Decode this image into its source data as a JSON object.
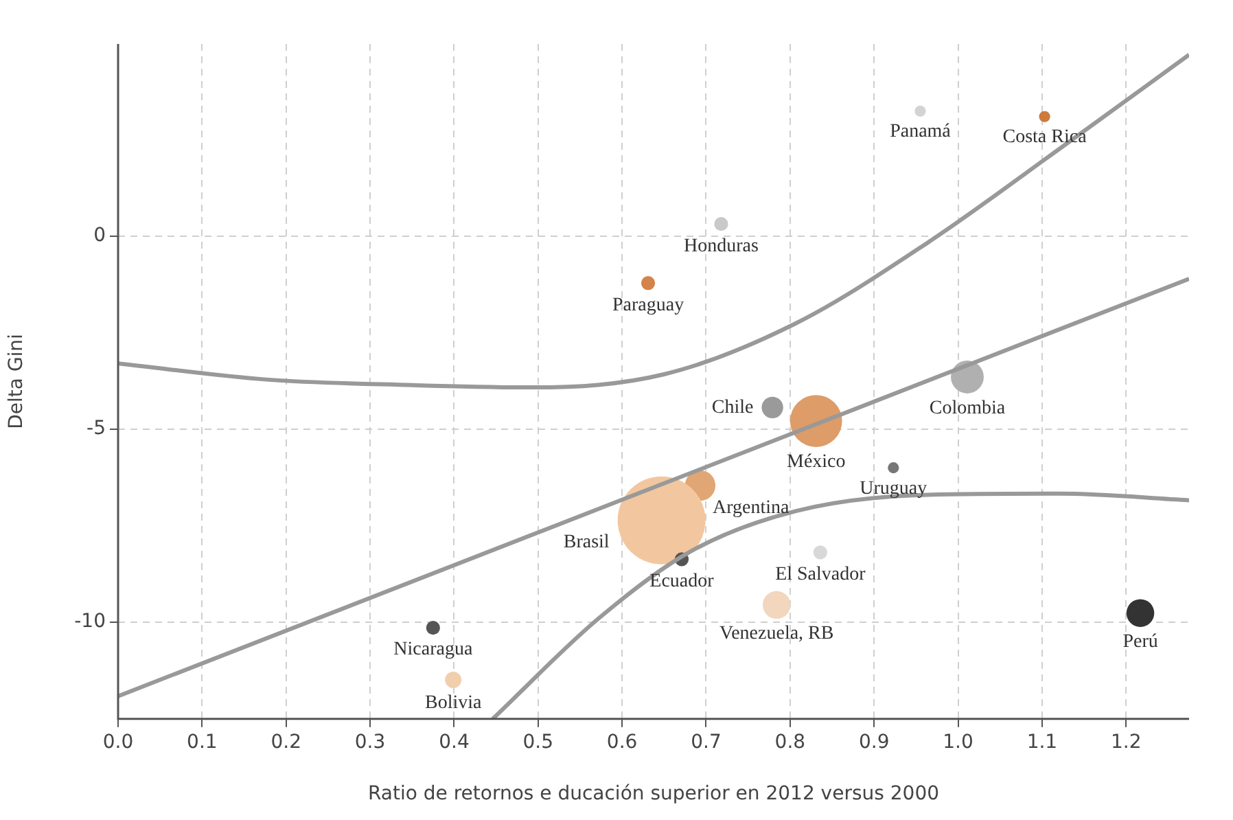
{
  "chart_data": {
    "type": "bubble",
    "xlabel": "Ratio de retornos e ducación superior en 2012 versus 2000",
    "ylabel": "Delta Gini",
    "xlim": [
      0,
      1.275
    ],
    "ylim": [
      -12.5,
      4.97
    ],
    "xticks": [
      {
        "value": 0,
        "label": "0.0"
      },
      {
        "value": 0.1,
        "label": "0.1"
      },
      {
        "value": 0.2,
        "label": "0.2"
      },
      {
        "value": 0.3,
        "label": "0.3"
      },
      {
        "value": 0.4,
        "label": "0.4"
      },
      {
        "value": 0.5,
        "label": "0.5"
      },
      {
        "value": 0.6,
        "label": "0.6"
      },
      {
        "value": 0.7,
        "label": "0.7"
      },
      {
        "value": 0.8,
        "label": "0.8"
      },
      {
        "value": 0.9,
        "label": "0.9"
      },
      {
        "value": 1,
        "label": "1.0"
      },
      {
        "value": 1.1,
        "label": "1.1"
      },
      {
        "value": 1.2,
        "label": "1.2"
      }
    ],
    "yticks": [
      -10,
      -5,
      0
    ],
    "grid": true,
    "legend": false,
    "series": [
      {
        "name": "Panamá",
        "color": "#d3d3d3",
        "x": [
          0.955
        ],
        "values": [
          3.23
        ],
        "sizes": [
          0.016
        ]
      },
      {
        "name": "Costa Rica",
        "color": "#cd7a3d",
        "x": [
          1.103
        ],
        "values": [
          3.09
        ],
        "sizes": [
          0.016
        ]
      },
      {
        "name": "Honduras",
        "color": "#c9c9c9",
        "x": [
          0.718
        ],
        "values": [
          0.31
        ],
        "sizes": [
          0.025
        ]
      },
      {
        "name": "Paraguay",
        "color": "#d4834a",
        "x": [
          0.631
        ],
        "values": [
          -1.22
        ],
        "sizes": [
          0.025
        ]
      },
      {
        "name": "Chile",
        "color": "#9a9a9a",
        "x": [
          0.779
        ],
        "values": [
          -4.44
        ],
        "sizes": [
          0.06
        ]
      },
      {
        "name": "Colombia",
        "color": "#b0b0b0",
        "x": [
          1.011
        ],
        "values": [
          -3.65
        ],
        "sizes": [
          0.14
        ]
      },
      {
        "name": "México",
        "color": "#dd9c68",
        "x": [
          0.831
        ],
        "values": [
          -4.79
        ],
        "sizes": [
          0.35
        ]
      },
      {
        "name": "Uruguay",
        "color": "#777777",
        "x": [
          0.923
        ],
        "values": [
          -6.0
        ],
        "sizes": [
          0.016
        ]
      },
      {
        "name": "Argentina",
        "color": "#e0a674",
        "x": [
          0.693
        ],
        "values": [
          -6.46
        ],
        "sizes": [
          0.12
        ]
      },
      {
        "name": "Brasil",
        "color": "#f2c79f",
        "x": [
          0.647
        ],
        "values": [
          -7.36
        ],
        "sizes": [
          1
        ]
      },
      {
        "name": "Ecuador",
        "color": "#555555",
        "x": [
          0.671
        ],
        "values": [
          -8.37
        ],
        "sizes": [
          0.025
        ]
      },
      {
        "name": "El Salvador",
        "color": "#d8d8d8",
        "x": [
          0.836
        ],
        "values": [
          -8.19
        ],
        "sizes": [
          0.025
        ]
      },
      {
        "name": "Venezuela, RB",
        "color": "#f2d6bd",
        "x": [
          0.784
        ],
        "values": [
          -9.55
        ],
        "sizes": [
          0.1
        ]
      },
      {
        "name": "Perú",
        "color": "#333333",
        "x": [
          1.217
        ],
        "values": [
          -9.76
        ],
        "sizes": [
          0.1
        ]
      },
      {
        "name": "Nicaragua",
        "color": "#555555",
        "x": [
          0.375
        ],
        "values": [
          -10.14
        ],
        "sizes": [
          0.025
        ]
      },
      {
        "name": "Bolivia",
        "color": "#f2cfac",
        "x": [
          0.399
        ],
        "values": [
          -11.49
        ],
        "sizes": [
          0.035
        ]
      },
      {
        "type": "line",
        "color": "#999999",
        "x": [
          0,
          1.275
        ],
        "values": [
          -11.91,
          -1.11
        ]
      },
      {
        "type": "line",
        "color": "#999999",
        "x": [
          0,
          0.179,
          0.35,
          0.493,
          0.65,
          0.807,
          0.964,
          1.121,
          1.275
        ],
        "values": [
          -3.3,
          -3.72,
          -3.86,
          -3.92,
          -3.58,
          -2.26,
          -0.17,
          2.26,
          4.69
        ]
      },
      {
        "type": "line",
        "color": "#999999",
        "x": [
          0.446,
          0.572,
          0.682,
          0.807,
          0.964,
          1.121,
          1.275
        ],
        "values": [
          -12.5,
          -9.9,
          -8.16,
          -7.12,
          -6.7,
          -6.67,
          -6.84
        ]
      }
    ]
  }
}
